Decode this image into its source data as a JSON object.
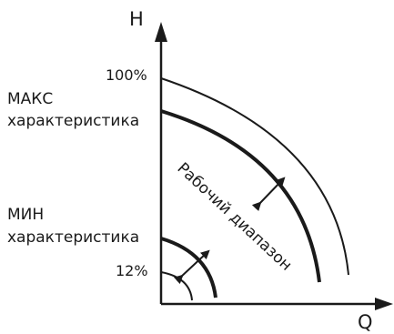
{
  "axes": {
    "y_label": "H",
    "x_label": "Q"
  },
  "levels": {
    "max_percent": "100%",
    "min_percent": "12%"
  },
  "curves": {
    "max_label_line1": "МАКС",
    "max_label_line2": "характеристика",
    "min_label_line1": "МИН",
    "min_label_line2": "характеристика"
  },
  "range_label": "Рабочий диапазон",
  "colors": {
    "stroke": "#1a1a1a",
    "background": "#ffffff"
  }
}
